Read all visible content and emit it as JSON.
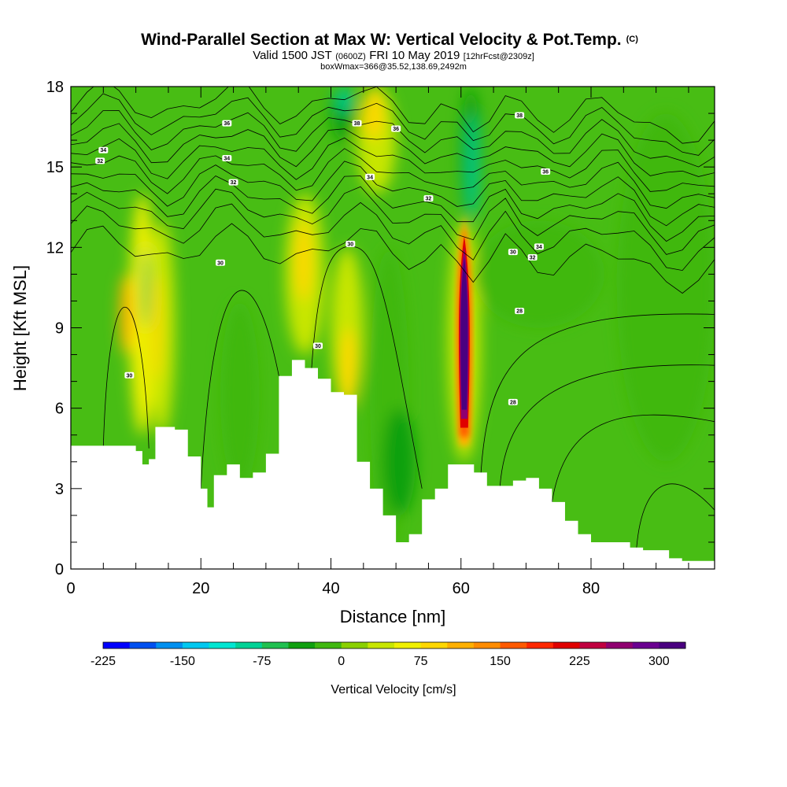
{
  "chart_data": {
    "type": "heatmap",
    "title": {
      "main": "Wind-Parallel Section at Max W: Vertical Velocity & Pot.Temp.",
      "main_suffix": "(C)",
      "line2_a": "Valid 1500 JST",
      "line2_b": "(0600Z)",
      "line2_c": "FRI 10 May 2019",
      "line2_d": "[12hrFcst@2309z]",
      "line3": "boxWmax=366@35.52,138.69,2492m"
    },
    "xlabel": "Distance [nm]",
    "ylabel": "Height [Kft MSL]",
    "xlim": [
      0,
      99
    ],
    "ylim": [
      0,
      18
    ],
    "xticks": [
      0,
      20,
      40,
      60,
      80
    ],
    "yticks": [
      0,
      3,
      6,
      9,
      12,
      15,
      18
    ],
    "grid": false,
    "colorbar": {
      "label": "Vertical Velocity [cm/s]",
      "min": -225,
      "max": 325,
      "step": 25,
      "tick_values": [
        -225,
        -150,
        -75,
        0,
        75,
        150,
        225,
        300
      ],
      "tick_labels": [
        "-225",
        "-150",
        "-75",
        "0",
        "75",
        "150",
        "225",
        "300"
      ],
      "colors": [
        "#0000ff",
        "#0050f0",
        "#0090f0",
        "#00c8f0",
        "#00e6d2",
        "#00d296",
        "#20c050",
        "#10a010",
        "#40b810",
        "#8ad000",
        "#c8e600",
        "#f0f000",
        "#ffd700",
        "#ffb000",
        "#ff8c00",
        "#ff5a00",
        "#ff2800",
        "#e00000",
        "#c00040",
        "#900070",
        "#6a0090",
        "#4a0080"
      ]
    },
    "terrain": {
      "x": [
        0,
        5,
        10,
        11,
        12,
        13,
        14,
        16,
        18,
        20,
        21,
        22,
        24,
        26,
        28,
        30,
        32,
        34,
        36,
        38,
        40,
        42,
        44,
        46,
        48,
        50,
        52,
        54,
        56,
        58,
        60,
        62,
        64,
        66,
        68,
        70,
        72,
        74,
        76,
        78,
        80,
        82,
        84,
        86,
        88,
        90,
        92,
        94,
        96,
        99
      ],
      "height": [
        4.6,
        4.6,
        4.4,
        3.9,
        4.1,
        5.3,
        5.3,
        5.2,
        4.2,
        3.0,
        2.3,
        3.5,
        3.9,
        3.4,
        3.6,
        4.3,
        7.2,
        7.8,
        7.5,
        7.1,
        6.6,
        6.5,
        4.0,
        3.0,
        2.0,
        1.0,
        1.3,
        2.6,
        3.0,
        3.9,
        3.9,
        3.6,
        3.1,
        3.1,
        3.3,
        3.4,
        3.0,
        2.5,
        1.8,
        1.3,
        1.0,
        1.0,
        1.0,
        0.8,
        0.7,
        0.7,
        0.4,
        0.3,
        0.3,
        0.3
      ]
    },
    "velocity_cells": [
      {
        "x": [
          9,
          13
        ],
        "y": [
          5,
          14
        ],
        "value": 50
      },
      {
        "x": [
          12,
          16
        ],
        "y": [
          5,
          13
        ],
        "value": 40
      },
      {
        "x": [
          33,
          39
        ],
        "y": [
          8,
          14
        ],
        "value": 45
      },
      {
        "x": [
          40,
          45
        ],
        "y": [
          6,
          12
        ],
        "value": 40
      },
      {
        "x": [
          44,
          50
        ],
        "y": [
          14,
          18
        ],
        "value": 45
      },
      {
        "x": [
          58,
          63
        ],
        "y": [
          4,
          13
        ],
        "value": 30
      },
      {
        "x": [
          23,
          29
        ],
        "y": [
          3,
          10
        ],
        "value": -10
      },
      {
        "x": [
          46,
          52
        ],
        "y": [
          1,
          12
        ],
        "value": -10
      },
      {
        "x": [
          40,
          44
        ],
        "y": [
          16,
          18
        ],
        "value": -40
      },
      {
        "x": [
          60,
          63
        ],
        "y": [
          13,
          18
        ],
        "value": -40
      },
      {
        "x": [
          48,
          53
        ],
        "y": [
          2,
          6
        ],
        "value": -50
      },
      {
        "x": [
          84,
          99
        ],
        "y": [
          4,
          17
        ],
        "value": -10
      },
      {
        "x": [
          62,
          82
        ],
        "y": [
          9,
          13
        ],
        "value": -10
      },
      {
        "x": [
          7.5,
          9.5
        ],
        "y": [
          8,
          11
        ],
        "value": 100
      },
      {
        "x": [
          12.5,
          14
        ],
        "y": [
          7,
          11
        ],
        "value": 95
      },
      {
        "x": [
          34.5,
          37
        ],
        "y": [
          10,
          13
        ],
        "value": 90
      },
      {
        "x": [
          41.5,
          44
        ],
        "y": [
          6,
          9
        ],
        "value": 95
      },
      {
        "x": [
          45,
          48
        ],
        "y": [
          16,
          18
        ],
        "value": 90
      },
      {
        "x": [
          11,
          12
        ],
        "y": [
          9,
          12
        ],
        "value": -70
      },
      {
        "x": [
          41,
          43
        ],
        "y": [
          17,
          18
        ],
        "value": -80
      },
      {
        "x": [
          61,
          62.5
        ],
        "y": [
          13,
          17
        ],
        "value": -80
      }
    ],
    "updraft_core": {
      "x": 60.5,
      "y": [
        4.6,
        13.2
      ],
      "peak_value": 325
    },
    "theta_contour_labels": [
      {
        "x": 5,
        "y": 15.6,
        "text": "34"
      },
      {
        "x": 4.5,
        "y": 15.2,
        "text": "32"
      },
      {
        "x": 24,
        "y": 16.6,
        "text": "36"
      },
      {
        "x": 24,
        "y": 15.3,
        "text": "34"
      },
      {
        "x": 25,
        "y": 14.4,
        "text": "32"
      },
      {
        "x": 23,
        "y": 11.4,
        "text": "30"
      },
      {
        "x": 43,
        "y": 12.1,
        "text": "30"
      },
      {
        "x": 9,
        "y": 7.2,
        "text": "30"
      },
      {
        "x": 38,
        "y": 8.3,
        "text": "30"
      },
      {
        "x": 44,
        "y": 16.6,
        "text": "38"
      },
      {
        "x": 50,
        "y": 16.4,
        "text": "36"
      },
      {
        "x": 46,
        "y": 14.6,
        "text": "34"
      },
      {
        "x": 55,
        "y": 13.8,
        "text": "32"
      },
      {
        "x": 69,
        "y": 16.9,
        "text": "38"
      },
      {
        "x": 73,
        "y": 14.8,
        "text": "36"
      },
      {
        "x": 72,
        "y": 12.0,
        "text": "34"
      },
      {
        "x": 68,
        "y": 11.8,
        "text": "30"
      },
      {
        "x": 71,
        "y": 11.6,
        "text": "32"
      },
      {
        "x": 69,
        "y": 9.6,
        "text": "28"
      },
      {
        "x": 68,
        "y": 6.2,
        "text": "28"
      }
    ]
  }
}
